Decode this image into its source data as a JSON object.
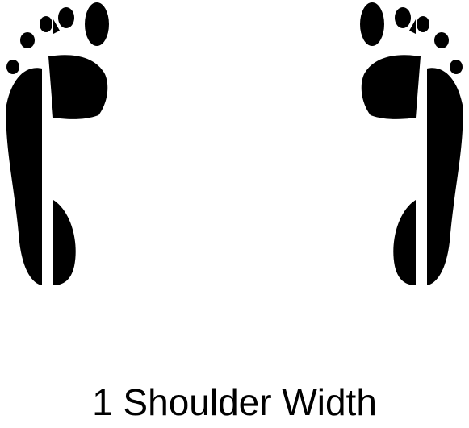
{
  "diagram": {
    "caption": "1 Shoulder Width",
    "feet": [
      {
        "side": "left",
        "icon": "left-footprint-icon"
      },
      {
        "side": "right",
        "icon": "right-footprint-icon"
      }
    ],
    "colors": {
      "footprint": "#000000",
      "background": "#ffffff",
      "caption": "#000000"
    }
  }
}
